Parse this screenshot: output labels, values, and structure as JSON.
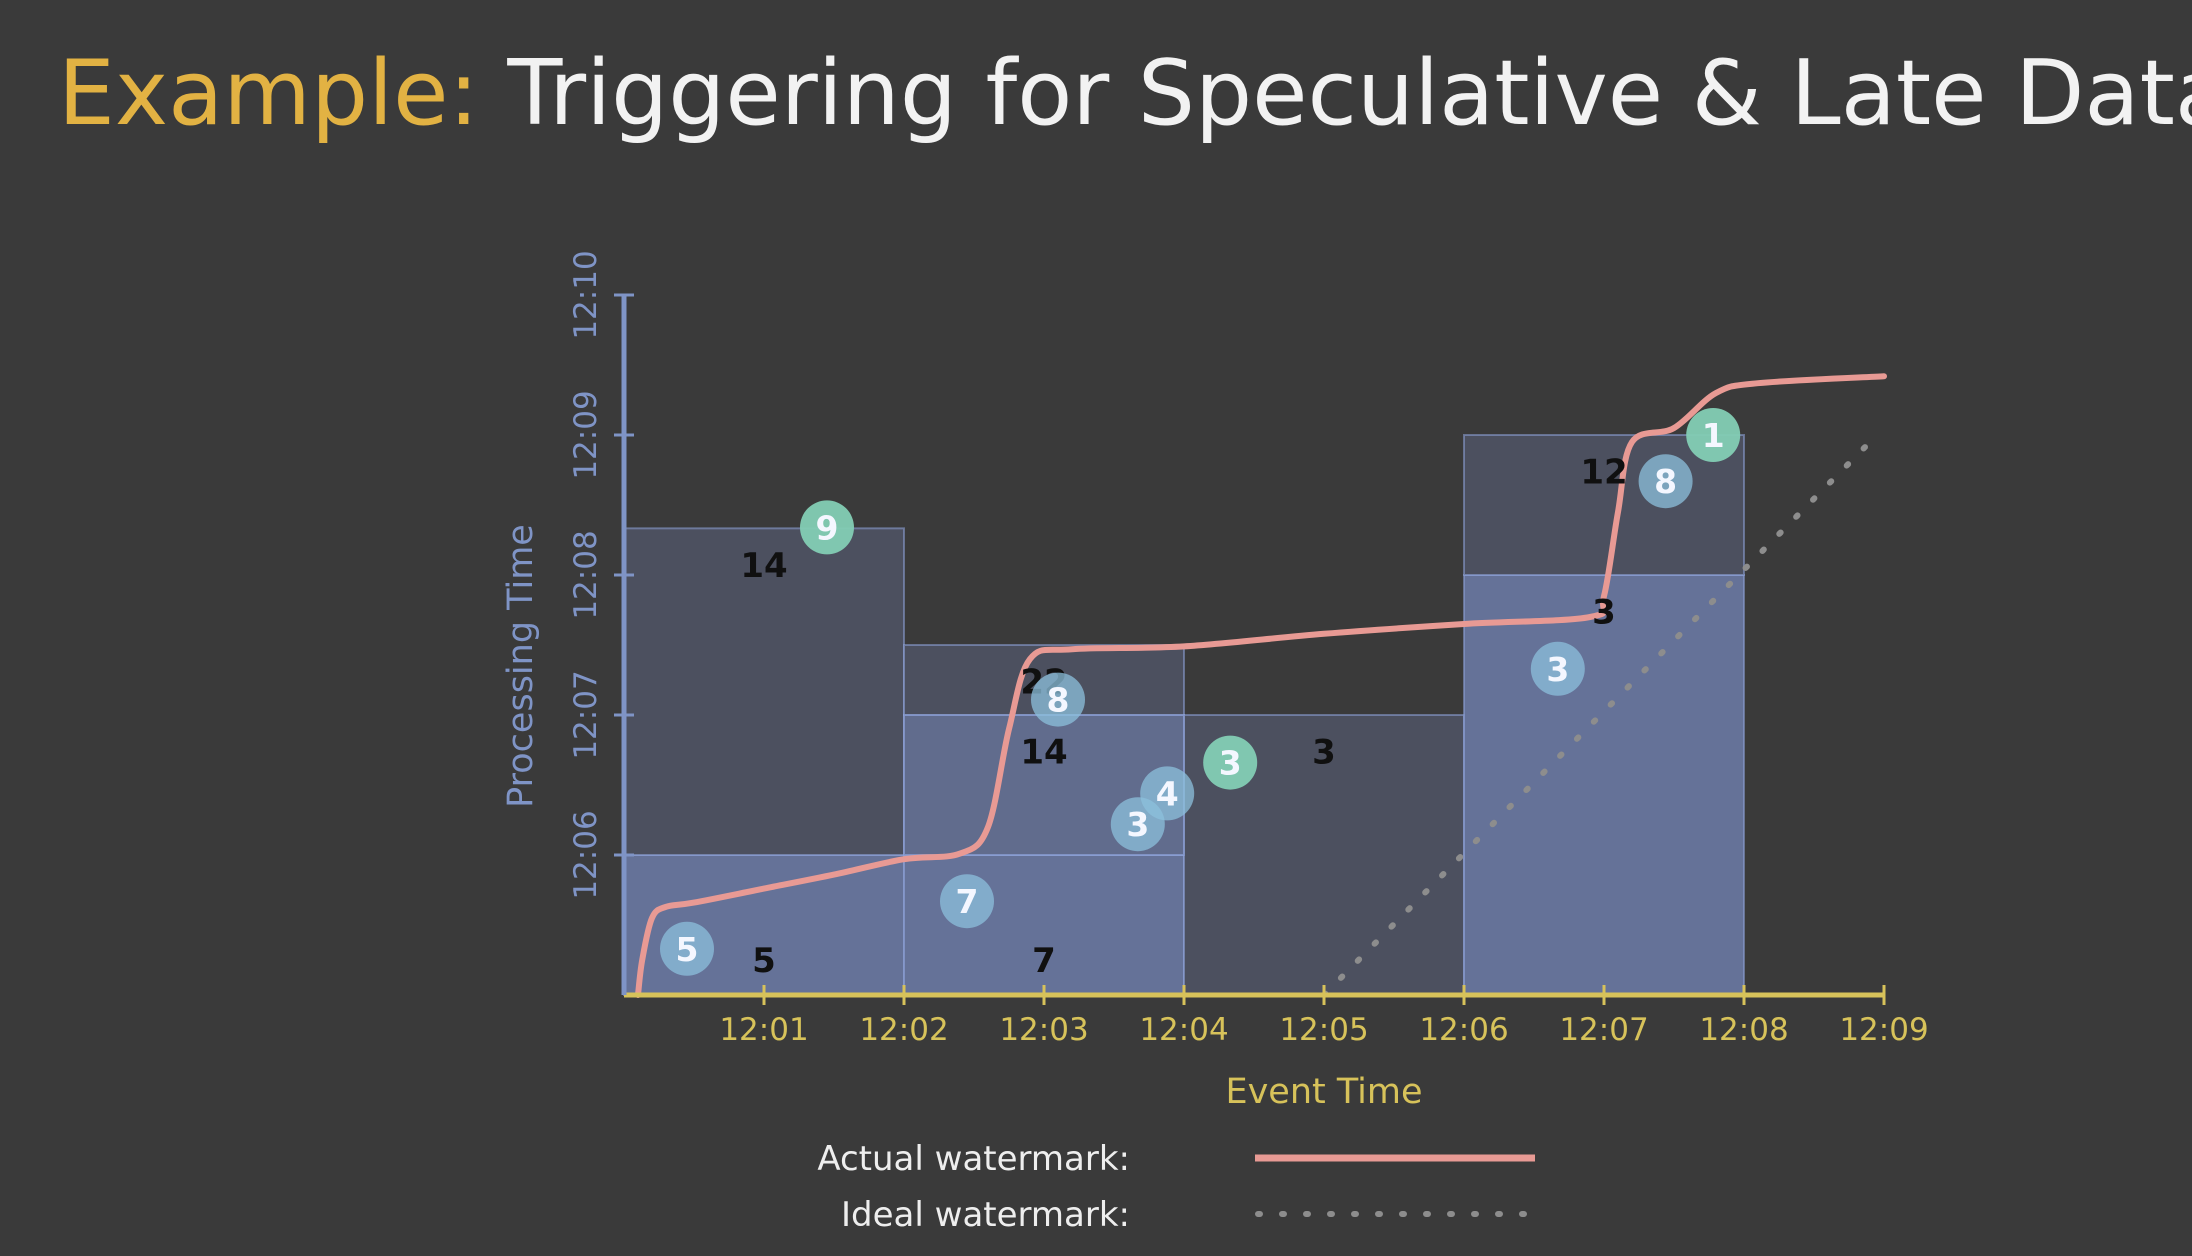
{
  "title": {
    "prefix": "Example:",
    "rest": "Triggering for Speculative & Late Data"
  },
  "chart_data": {
    "type": "scatter",
    "xlabel": "Event Time",
    "ylabel": "Processing Time",
    "xlim": [
      "12:00",
      "12:09"
    ],
    "ylim": [
      "12:05",
      "12:10"
    ],
    "xticks": [
      "12:01",
      "12:02",
      "12:03",
      "12:04",
      "12:05",
      "12:06",
      "12:07",
      "12:08",
      "12:09"
    ],
    "yticks": [
      "12:06",
      "12:07",
      "12:08",
      "12:09",
      "12:10"
    ],
    "colors": {
      "x_axis": "#d7c25a",
      "y_axis": "#7f94c6",
      "actual_watermark": "#e89a94",
      "ideal_watermark": "#8d8d8d",
      "bubble_blue": "#8cc0dc",
      "bubble_green": "#83ceb4",
      "pane_dark": "#505668",
      "pane_light": "#7283b3"
    },
    "windows": [
      {
        "start": "12:00",
        "end": "12:02",
        "panes": [
          {
            "from": "12:05",
            "to": "12:06",
            "label": "5"
          },
          {
            "from": "12:06",
            "to": "12:08:20",
            "label": "14"
          }
        ]
      },
      {
        "start": "12:02",
        "end": "12:04",
        "panes": [
          {
            "from": "12:05",
            "to": "12:06",
            "label": "7"
          },
          {
            "from": "12:06",
            "to": "12:07",
            "label": "14"
          },
          {
            "from": "12:07",
            "to": "12:07:30",
            "label": "22"
          }
        ]
      },
      {
        "start": "12:04",
        "end": "12:06",
        "panes": [
          {
            "from": "12:05",
            "to": "12:07",
            "label": "3"
          }
        ]
      },
      {
        "start": "12:06",
        "end": "12:08",
        "panes": [
          {
            "from": "12:05",
            "to": "12:08",
            "label": "3"
          },
          {
            "from": "12:08",
            "to": "12:09",
            "label": "12"
          }
        ]
      }
    ],
    "points": [
      {
        "event": 0.45,
        "processing": 5.33,
        "value": "5",
        "late": false
      },
      {
        "event": 1.45,
        "processing": 8.34,
        "value": "9",
        "late": true
      },
      {
        "event": 2.45,
        "processing": 5.67,
        "value": "7",
        "late": false
      },
      {
        "event": 3.1,
        "processing": 7.11,
        "value": "8",
        "late": false
      },
      {
        "event": 3.67,
        "processing": 6.22,
        "value": "3",
        "late": false
      },
      {
        "event": 3.88,
        "processing": 6.44,
        "value": "4",
        "late": false
      },
      {
        "event": 4.33,
        "processing": 6.66,
        "value": "3",
        "late": true
      },
      {
        "event": 6.67,
        "processing": 7.33,
        "value": "3",
        "late": false
      },
      {
        "event": 7.44,
        "processing": 8.67,
        "value": "8",
        "late": false
      },
      {
        "event": 7.78,
        "processing": 9.0,
        "value": "1",
        "late": true
      }
    ],
    "actual_watermark": [
      [
        0.1,
        5.0
      ],
      [
        0.13,
        5.25
      ],
      [
        0.2,
        5.55
      ],
      [
        0.3,
        5.63
      ],
      [
        0.5,
        5.66
      ],
      [
        1.0,
        5.76
      ],
      [
        1.5,
        5.86
      ],
      [
        2.0,
        5.97
      ],
      [
        2.4,
        6.01
      ],
      [
        2.6,
        6.2
      ],
      [
        2.75,
        6.9
      ],
      [
        2.9,
        7.4
      ],
      [
        3.2,
        7.47
      ],
      [
        4.0,
        7.49
      ],
      [
        5.0,
        7.58
      ],
      [
        6.0,
        7.65
      ],
      [
        6.9,
        7.7
      ],
      [
        7.0,
        7.85
      ],
      [
        7.1,
        8.45
      ],
      [
        7.2,
        8.95
      ],
      [
        7.5,
        9.05
      ],
      [
        7.8,
        9.3
      ],
      [
        8.1,
        9.37
      ],
      [
        9.0,
        9.42
      ]
    ],
    "ideal_watermark": [
      [
        5.0,
        5.0
      ],
      [
        8.9,
        8.95
      ]
    ],
    "legend": [
      {
        "label": "Actual watermark:",
        "style": "solid"
      },
      {
        "label": "Ideal watermark:",
        "style": "dotted"
      }
    ]
  }
}
